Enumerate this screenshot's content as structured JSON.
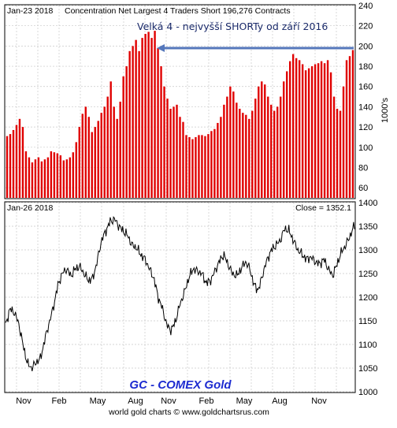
{
  "chart_data": [
    {
      "type": "bar",
      "header_date": "Jan-23  2018",
      "title": "Concentration Net Largest 4 Traders Short 196,276 Contracts",
      "annotation": "Velká 4 - nejvyšší SHORTy od září 2016",
      "ylabel": "1000's",
      "ylim": [
        50,
        240
      ],
      "yticks": [
        60,
        80,
        100,
        120,
        140,
        160,
        180,
        200,
        220,
        240
      ],
      "bar_color": "#e00000",
      "arrow_color": "#5577bb",
      "values": [
        111,
        113,
        117,
        122,
        128,
        120,
        96,
        90,
        85,
        88,
        90,
        86,
        88,
        90,
        96,
        95,
        94,
        92,
        87,
        88,
        90,
        95,
        105,
        120,
        133,
        140,
        130,
        115,
        120,
        126,
        134,
        140,
        150,
        165,
        140,
        128,
        145,
        170,
        180,
        195,
        200,
        206,
        195,
        208,
        212,
        214,
        208,
        215,
        198,
        180,
        160,
        148,
        138,
        140,
        142,
        130,
        125,
        112,
        110,
        108,
        110,
        112,
        112,
        111,
        113,
        116,
        118,
        124,
        130,
        142,
        150,
        160,
        155,
        144,
        138,
        134,
        132,
        128,
        136,
        148,
        160,
        165,
        162,
        150,
        142,
        136,
        140,
        150,
        165,
        175,
        185,
        192,
        188,
        186,
        182,
        176,
        178,
        180,
        182,
        183,
        185,
        183,
        186,
        174,
        150,
        138,
        136,
        160,
        186,
        190,
        196
      ],
      "grid": true
    },
    {
      "type": "line",
      "header_date": "Jan-26  2018",
      "close_label": "Close = 1352.1",
      "title": "GC - COMEX Gold",
      "ylim": [
        1000,
        1400
      ],
      "yticks": [
        1000,
        1050,
        1100,
        1150,
        1200,
        1250,
        1300,
        1350,
        1400
      ],
      "x_categories": [
        "Nov",
        "Feb",
        "May",
        "Aug",
        "Nov",
        "Feb",
        "May",
        "Aug",
        "Nov"
      ],
      "line_color": "#000000",
      "anchors": [
        1140,
        1175,
        1168,
        1145,
        1100,
        1060,
        1050,
        1062,
        1070,
        1110,
        1145,
        1180,
        1225,
        1250,
        1260,
        1245,
        1260,
        1265,
        1250,
        1235,
        1240,
        1275,
        1320,
        1340,
        1360,
        1365,
        1350,
        1340,
        1330,
        1310,
        1305,
        1290,
        1280,
        1260,
        1240,
        1200,
        1175,
        1140,
        1130,
        1150,
        1185,
        1210,
        1240,
        1260,
        1255,
        1250,
        1230,
        1235,
        1255,
        1275,
        1290,
        1270,
        1250,
        1245,
        1260,
        1275,
        1260,
        1225,
        1215,
        1250,
        1280,
        1300,
        1310,
        1320,
        1345,
        1340,
        1320,
        1300,
        1290,
        1280,
        1285,
        1275,
        1270,
        1280,
        1260,
        1245,
        1270,
        1295,
        1310,
        1330,
        1352
      ],
      "grid": true
    }
  ],
  "footer": "world gold charts © www.goldchartsrus.com"
}
